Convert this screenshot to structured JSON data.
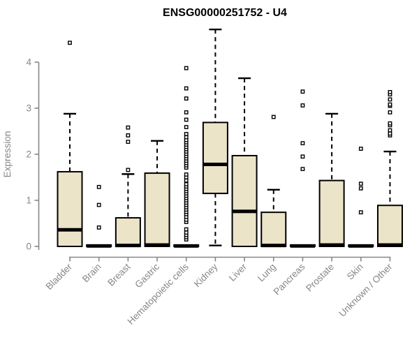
{
  "colors": {
    "background": "#ffffff",
    "box_fill": "#ece4c9",
    "box_border": "#000000",
    "median": "#000000",
    "whisker": "#000000",
    "outlier_stroke": "#000000",
    "outlier_fill": "#ffffff",
    "axis": "#878787",
    "title": "#000000"
  },
  "chart_data": {
    "type": "boxplot",
    "title": "ENSG00000251752 - U4",
    "ylabel": "Expression",
    "xlabel": "",
    "ylim": [
      -0.1,
      4.75
    ],
    "yticks": [
      0,
      1,
      2,
      3,
      4
    ],
    "grid": false,
    "legend": null,
    "categories": [
      "Bladder",
      "Brain",
      "Breast",
      "Gastric",
      "Hematopoietic cells",
      "Kidney",
      "Liver",
      "Lung",
      "Pancreas",
      "Prostate",
      "Skin",
      "Unknown / Other"
    ],
    "series": [
      {
        "label": "Bladder",
        "whisker_low": 0,
        "q1": 0,
        "median": 0.36,
        "q3": 1.62,
        "whisker_high": 2.88,
        "outliers": [
          4.42
        ]
      },
      {
        "label": "Brain",
        "whisker_low": 0,
        "q1": 0,
        "median": 0.01,
        "q3": 0.03,
        "whisker_high": 0.03,
        "outliers": [
          0.41,
          0.9,
          1.29
        ]
      },
      {
        "label": "Breast",
        "whisker_low": 0,
        "q1": 0,
        "median": 0.02,
        "q3": 0.62,
        "whisker_high": 1.57,
        "outliers": [
          1.66,
          2.27,
          2.41,
          2.58
        ]
      },
      {
        "label": "Gastric",
        "whisker_low": 0,
        "q1": 0,
        "median": 0.03,
        "q3": 1.59,
        "whisker_high": 2.29,
        "outliers": []
      },
      {
        "label": "Hematopoietic cells",
        "whisker_low": 0,
        "q1": 0,
        "median": 0.01,
        "q3": 0.03,
        "whisker_high": 0.03,
        "outliers": [
          0.15,
          0.2,
          0.25,
          0.3,
          0.37,
          0.53,
          0.58,
          0.64,
          0.7,
          0.75,
          0.8,
          0.85,
          0.9,
          0.95,
          1.0,
          1.05,
          1.1,
          1.15,
          1.2,
          1.25,
          1.3,
          1.35,
          1.43,
          1.5,
          1.56,
          1.71,
          1.76,
          1.81,
          1.86,
          1.91,
          1.96,
          2.01,
          2.06,
          2.11,
          2.16,
          2.21,
          2.26,
          2.31,
          2.37,
          2.44,
          2.59,
          2.75,
          2.91,
          3.21,
          3.43,
          3.87
        ]
      },
      {
        "label": "Kidney",
        "whisker_low": 0.02,
        "q1": 1.15,
        "median": 1.78,
        "q3": 2.69,
        "whisker_high": 4.71,
        "outliers": []
      },
      {
        "label": "Liver",
        "whisker_low": 0,
        "q1": 0,
        "median": 0.76,
        "q3": 1.97,
        "whisker_high": 3.65,
        "outliers": []
      },
      {
        "label": "Lung",
        "whisker_low": 0,
        "q1": 0,
        "median": 0.02,
        "q3": 0.74,
        "whisker_high": 1.23,
        "outliers": [
          2.81
        ]
      },
      {
        "label": "Pancreas",
        "whisker_low": 0,
        "q1": 0,
        "median": 0.01,
        "q3": 0.03,
        "whisker_high": 0.03,
        "outliers": [
          1.68,
          1.95,
          2.24,
          3.06,
          3.36
        ]
      },
      {
        "label": "Prostate",
        "whisker_low": 0,
        "q1": 0,
        "median": 0.03,
        "q3": 1.43,
        "whisker_high": 2.88,
        "outliers": []
      },
      {
        "label": "Skin",
        "whisker_low": 0,
        "q1": 0,
        "median": 0.01,
        "q3": 0.03,
        "whisker_high": 0.03,
        "outliers": [
          0.74,
          1.26,
          1.36,
          2.12
        ]
      },
      {
        "label": "Unknown / Other",
        "whisker_low": 0,
        "q1": 0,
        "median": 0.03,
        "q3": 0.89,
        "whisker_high": 2.06,
        "outliers": [
          2.41,
          2.45,
          2.52,
          2.63,
          2.67,
          2.91,
          3.05,
          3.08,
          3.19,
          3.3,
          3.35
        ]
      }
    ]
  }
}
